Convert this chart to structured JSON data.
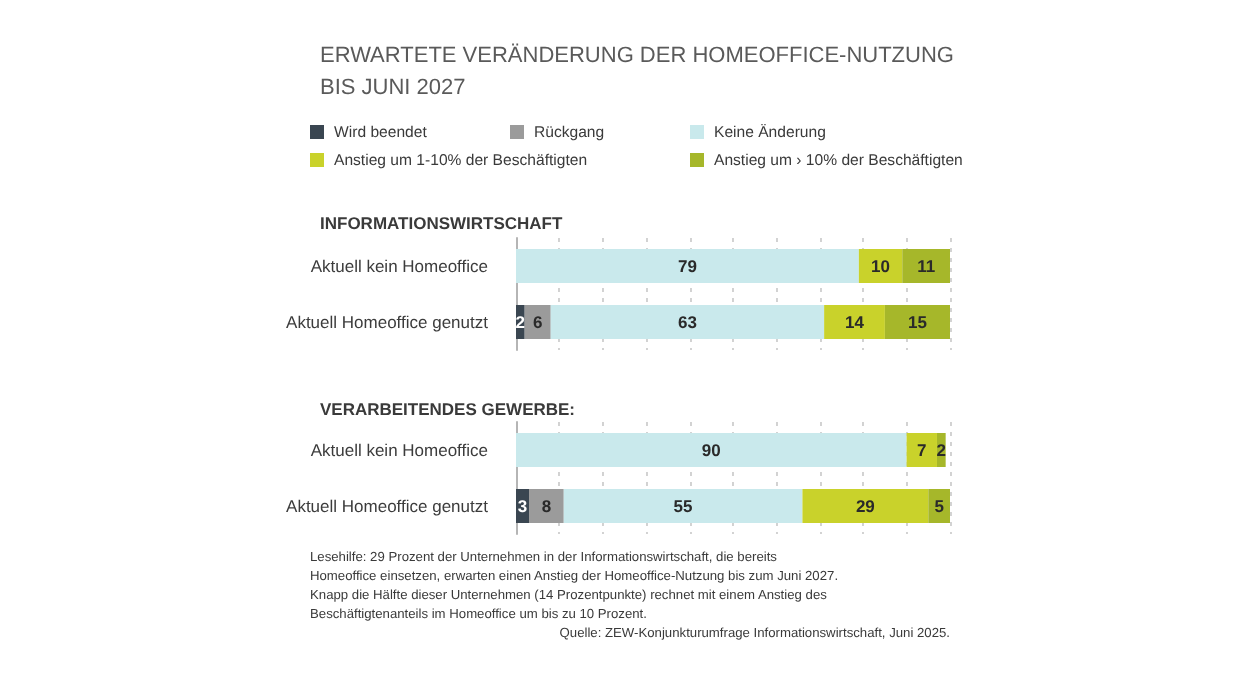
{
  "chart_data": [
    {
      "type": "bar",
      "orientation": "horizontal",
      "stacked": true,
      "title": "ERWARTETE VERÄNDERUNG DER HOMEOFFICE-NUTZUNG BIS JUNI 2027",
      "subtitle": "INFORMATIONSWIRTSCHAFT",
      "categories": [
        "Aktuell kein Homeoffice",
        "Aktuell Homeoffice genutzt"
      ],
      "series": [
        {
          "name": "Wird beendet",
          "color": "#3a4651",
          "values": [
            null,
            2
          ]
        },
        {
          "name": "Rückgang",
          "color": "#9b9b9b",
          "values": [
            null,
            6
          ]
        },
        {
          "name": "Keine Änderung",
          "color": "#c9e9ec",
          "values": [
            79,
            63
          ]
        },
        {
          "name": "Anstieg um 1-10% der Beschäftigten",
          "color": "#c9d22b",
          "values": [
            10,
            14
          ]
        },
        {
          "name": "Anstieg um › 10% der Beschäftigten",
          "color": "#a6b72a",
          "values": [
            11,
            15
          ]
        }
      ],
      "xlim": [
        0,
        100
      ],
      "xticks": [
        {
          "value": 0,
          "label": null
        },
        {
          "value": 10,
          "label": null
        },
        {
          "value": 20,
          "label": null
        },
        {
          "value": 30,
          "label": null
        },
        {
          "value": 40,
          "label": null
        },
        {
          "value": 50,
          "label": null
        },
        {
          "value": 60,
          "label": null
        },
        {
          "value": 70,
          "label": null
        },
        {
          "value": 80,
          "label": null
        },
        {
          "value": 90,
          "label": null
        },
        {
          "value": 100,
          "label": null
        }
      ],
      "grid": "x",
      "tick_labels": "y",
      "data_labels": true,
      "legend": "top"
    },
    {
      "type": "bar",
      "orientation": "horizontal",
      "stacked": true,
      "title": "VERARBEITENDES GEWERBE:",
      "categories": [
        "Aktuell kein Homeoffice",
        "Aktuell Homeoffice genutzt"
      ],
      "series": [
        {
          "color": "#3a4651",
          "values": [
            null,
            3
          ]
        },
        {
          "color": "#9b9b9b",
          "values": [
            null,
            8
          ]
        },
        {
          "color": "#c9e9ec",
          "values": [
            90,
            55
          ]
        },
        {
          "color": "#c9d22b",
          "values": [
            7,
            29
          ]
        },
        {
          "color": "#a6b72a",
          "values": [
            2,
            5
          ]
        }
      ],
      "xlim": [
        0,
        100
      ],
      "xticks": [
        {
          "value": 0,
          "label": null
        },
        {
          "value": 10,
          "label": null
        },
        {
          "value": 20,
          "label": null
        },
        {
          "value": 30,
          "label": null
        },
        {
          "value": 40,
          "label": null
        },
        {
          "value": 50,
          "label": null
        },
        {
          "value": 60,
          "label": null
        },
        {
          "value": 70,
          "label": null
        },
        {
          "value": 80,
          "label": null
        },
        {
          "value": 90,
          "label": null
        },
        {
          "value": 100,
          "label": null
        }
      ],
      "grid": "x",
      "tick_labels": "y",
      "data_labels": true,
      "annotations": [
        "Lesehilfe: 29 Prozent der Unternehmen in der Informationswirtschaft, die bereits Homeoffice einsetzen, erwarten einen Anstieg der Homeoffice-Nutzung bis zum Juni 2027. Knapp die Hälfte dieser Unternehmen (14 Prozentpunkte) rechnet mit einem Anstieg des Beschäftigtenanteils im Homeoffice um bis zu 10 Prozent.",
        "Quelle: ZEW-Konjunkturumfrage Informationswirtschaft, Juni 2025."
      ]
    }
  ]
}
